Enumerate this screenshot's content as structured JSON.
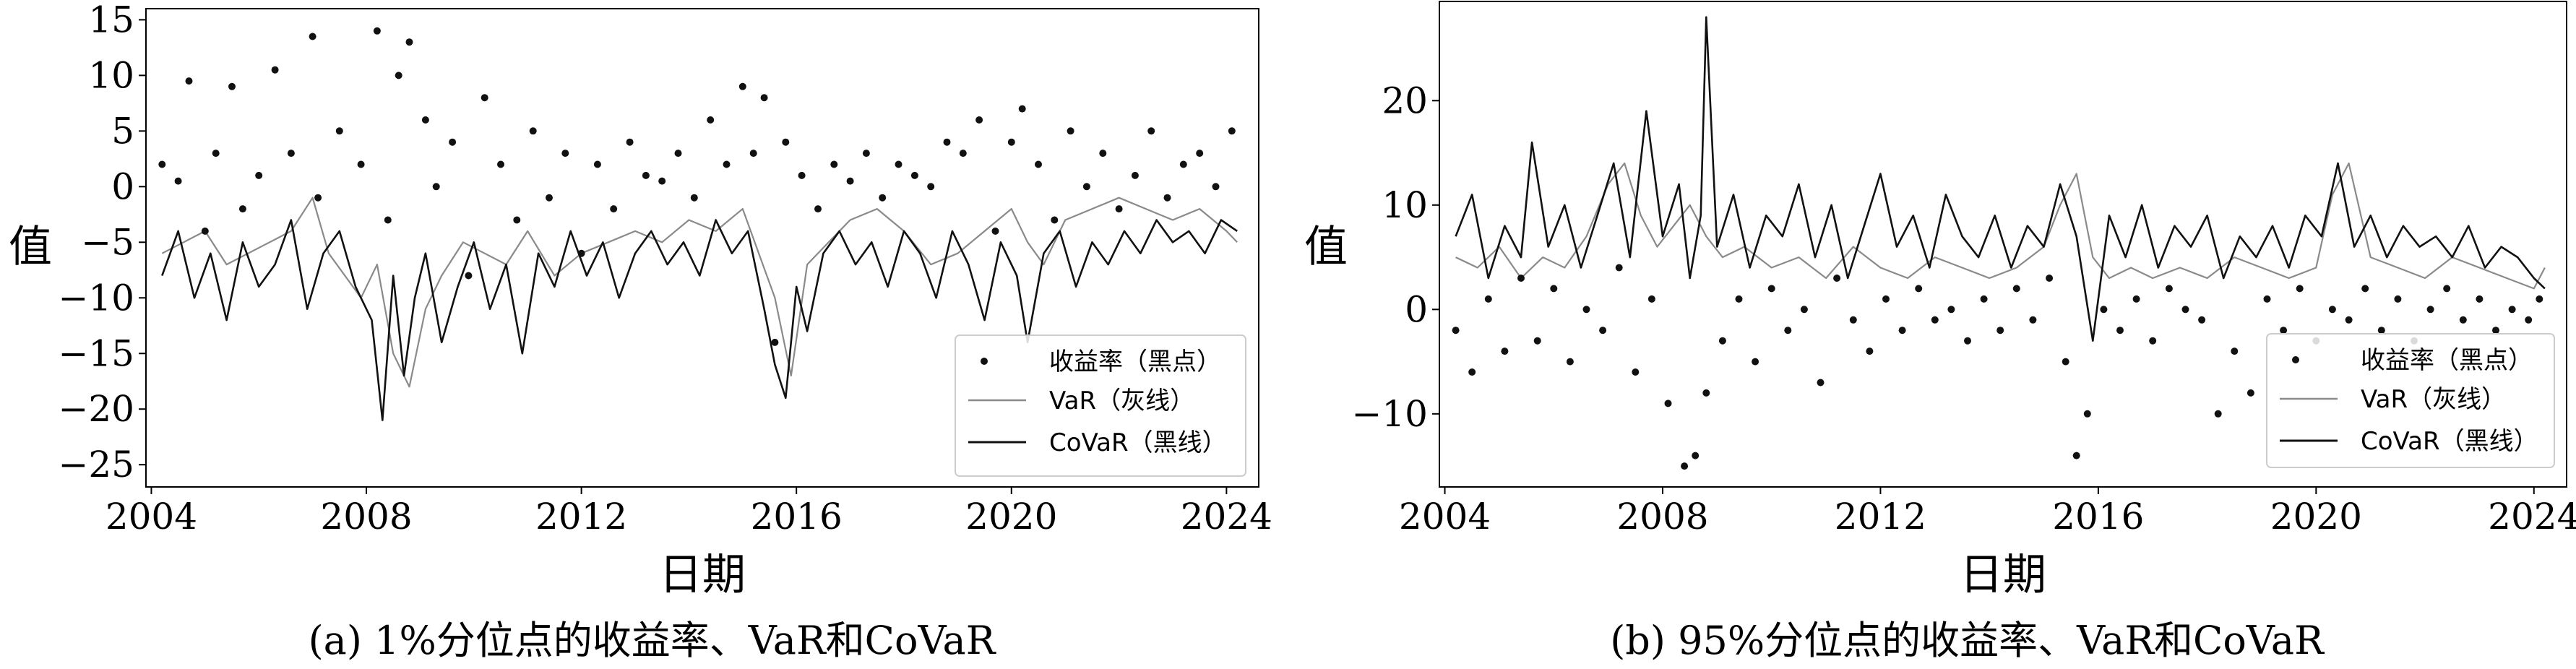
{
  "figure": {
    "xlabel": "日期",
    "ylabel": "值",
    "legend": {
      "returns": "收益率（黑点）",
      "var": "VaR（灰线）",
      "covar": "CoVaR（黑线）"
    }
  },
  "colors": {
    "returns": "#111111",
    "var": "#8a8a8a",
    "covar": "#111111",
    "frame": "#000000"
  },
  "chart_data": [
    {
      "type": "line",
      "caption": "(a) 1%分位点的收益率、VaR和CoVaR",
      "xlabel": "日期",
      "ylabel": "值",
      "xlim": [
        2003.9,
        2024.6
      ],
      "ylim": [
        -27,
        16
      ],
      "xticks": [
        2004,
        2008,
        2012,
        2016,
        2020,
        2024
      ],
      "xtick_labels": [
        "2004",
        "2008",
        "2012",
        "2016",
        "2020",
        "2024"
      ],
      "yticks": [
        15,
        10,
        5,
        0,
        -5,
        -10,
        -15,
        -20,
        -25
      ],
      "ytick_labels": [
        "15",
        "10",
        "5",
        "0",
        "−5",
        "−10",
        "−15",
        "−20",
        "−25"
      ],
      "grid": false,
      "legend_position": "lower-right",
      "series": [
        {
          "name": "收益率（黑点）",
          "kind": "scatter",
          "x": [
            2004.2,
            2004.5,
            2004.7,
            2005.0,
            2005.2,
            2005.5,
            2005.7,
            2006.0,
            2006.3,
            2006.6,
            2007.0,
            2007.1,
            2007.5,
            2007.9,
            2008.2,
            2008.4,
            2008.6,
            2008.8,
            2009.1,
            2009.3,
            2009.6,
            2009.9,
            2010.2,
            2010.5,
            2010.8,
            2011.1,
            2011.4,
            2011.7,
            2012.0,
            2012.3,
            2012.6,
            2012.9,
            2013.2,
            2013.5,
            2013.8,
            2014.1,
            2014.4,
            2014.7,
            2015.0,
            2015.2,
            2015.4,
            2015.6,
            2015.8,
            2016.1,
            2016.4,
            2016.7,
            2017.0,
            2017.3,
            2017.6,
            2017.9,
            2018.2,
            2018.5,
            2018.8,
            2019.1,
            2019.4,
            2019.7,
            2020.0,
            2020.2,
            2020.5,
            2020.8,
            2021.1,
            2021.4,
            2021.7,
            2022.0,
            2022.3,
            2022.6,
            2022.9,
            2023.2,
            2023.5,
            2023.8,
            2024.1
          ],
          "y": [
            2,
            0.5,
            9.5,
            -4,
            3,
            9,
            -2,
            1,
            10.5,
            3,
            13.5,
            -1,
            5,
            2,
            14,
            -3,
            10,
            13,
            6,
            0,
            4,
            -8,
            8,
            2,
            -3,
            5,
            -1,
            3,
            -6,
            2,
            -2,
            4,
            1,
            0.5,
            3,
            -1,
            6,
            2,
            9,
            3,
            8,
            -14,
            4,
            1,
            -2,
            2,
            0.5,
            3,
            -1,
            2,
            1,
            0,
            4,
            3,
            6,
            -4,
            4,
            7,
            2,
            -3,
            5,
            0,
            3,
            -2,
            1,
            5,
            -1,
            2,
            3,
            0,
            5
          ]
        },
        {
          "name": "VaR（灰线）",
          "kind": "line",
          "x": [
            2004.2,
            2004.6,
            2005.0,
            2005.4,
            2005.8,
            2006.2,
            2006.6,
            2007.0,
            2007.3,
            2007.6,
            2007.9,
            2008.2,
            2008.5,
            2008.8,
            2009.1,
            2009.4,
            2009.8,
            2010.2,
            2010.6,
            2011.0,
            2011.5,
            2012.0,
            2012.5,
            2013.0,
            2013.5,
            2014.0,
            2014.5,
            2015.0,
            2015.3,
            2015.6,
            2015.9,
            2016.2,
            2016.6,
            2017.0,
            2017.5,
            2018.0,
            2018.5,
            2019.0,
            2019.5,
            2020.0,
            2020.3,
            2020.6,
            2021.0,
            2021.5,
            2022.0,
            2022.5,
            2023.0,
            2023.5,
            2024.0,
            2024.2
          ],
          "y": [
            -6,
            -5,
            -4,
            -7,
            -6,
            -5,
            -4,
            -1,
            -6,
            -8,
            -10,
            -7,
            -15,
            -18,
            -11,
            -8,
            -5,
            -6,
            -7,
            -4,
            -8,
            -6,
            -5,
            -4,
            -5,
            -3,
            -4,
            -2,
            -6,
            -10,
            -17,
            -7,
            -5,
            -3,
            -2,
            -4,
            -7,
            -6,
            -4,
            -2,
            -5,
            -7,
            -3,
            -2,
            -1,
            -2,
            -3,
            -2,
            -4,
            -5
          ]
        },
        {
          "name": "CoVaR（黑线）",
          "kind": "line",
          "x": [
            2004.2,
            2004.5,
            2004.8,
            2005.1,
            2005.4,
            2005.7,
            2006.0,
            2006.3,
            2006.6,
            2006.9,
            2007.2,
            2007.5,
            2007.8,
            2008.1,
            2008.3,
            2008.5,
            2008.7,
            2008.9,
            2009.1,
            2009.4,
            2009.7,
            2010.0,
            2010.3,
            2010.6,
            2010.9,
            2011.2,
            2011.5,
            2011.8,
            2012.1,
            2012.4,
            2012.7,
            2013.0,
            2013.3,
            2013.6,
            2013.9,
            2014.2,
            2014.5,
            2014.8,
            2015.1,
            2015.4,
            2015.6,
            2015.8,
            2016.0,
            2016.2,
            2016.5,
            2016.8,
            2017.1,
            2017.4,
            2017.7,
            2018.0,
            2018.3,
            2018.6,
            2018.9,
            2019.2,
            2019.5,
            2019.8,
            2020.1,
            2020.3,
            2020.6,
            2020.9,
            2021.2,
            2021.5,
            2021.8,
            2022.1,
            2022.4,
            2022.7,
            2023.0,
            2023.3,
            2023.6,
            2023.9,
            2024.2
          ],
          "y": [
            -8,
            -4,
            -10,
            -6,
            -12,
            -5,
            -9,
            -7,
            -3,
            -11,
            -6,
            -4,
            -9,
            -12,
            -21,
            -8,
            -17,
            -10,
            -6,
            -14,
            -9,
            -5,
            -11,
            -7,
            -15,
            -6,
            -9,
            -4,
            -8,
            -5,
            -10,
            -6,
            -4,
            -7,
            -5,
            -8,
            -3,
            -6,
            -4,
            -11,
            -16,
            -19,
            -9,
            -13,
            -6,
            -4,
            -7,
            -5,
            -9,
            -4,
            -6,
            -10,
            -4,
            -7,
            -12,
            -5,
            -8,
            -14,
            -6,
            -4,
            -9,
            -5,
            -7,
            -4,
            -6,
            -3,
            -5,
            -4,
            -6,
            -3,
            -4
          ]
        }
      ]
    },
    {
      "type": "line",
      "caption": "(b) 95%分位点的收益率、VaR和CoVaR",
      "xlabel": "日期",
      "ylabel": "值",
      "xlim": [
        2003.9,
        2024.6
      ],
      "ylim": [
        -17,
        29.5
      ],
      "xticks": [
        2004,
        2008,
        2012,
        2016,
        2020,
        2024
      ],
      "xtick_labels": [
        "2004",
        "2008",
        "2012",
        "2016",
        "2020",
        "2024"
      ],
      "yticks": [
        20,
        10,
        0,
        -10
      ],
      "ytick_labels": [
        "20",
        "10",
        "0",
        "−10"
      ],
      "grid": false,
      "legend_position": "lower-right",
      "series": [
        {
          "name": "收益率（黑点）",
          "kind": "scatter",
          "x": [
            2004.2,
            2004.5,
            2004.8,
            2005.1,
            2005.4,
            2005.7,
            2006.0,
            2006.3,
            2006.6,
            2006.9,
            2007.2,
            2007.5,
            2007.8,
            2008.1,
            2008.4,
            2008.6,
            2008.8,
            2009.1,
            2009.4,
            2009.7,
            2010.0,
            2010.3,
            2010.6,
            2010.9,
            2011.2,
            2011.5,
            2011.8,
            2012.1,
            2012.4,
            2012.7,
            2013.0,
            2013.3,
            2013.6,
            2013.9,
            2014.2,
            2014.5,
            2014.8,
            2015.1,
            2015.4,
            2015.6,
            2015.8,
            2016.1,
            2016.4,
            2016.7,
            2017.0,
            2017.3,
            2017.6,
            2017.9,
            2018.2,
            2018.5,
            2018.8,
            2019.1,
            2019.4,
            2019.7,
            2020.0,
            2020.3,
            2020.6,
            2020.9,
            2021.2,
            2021.5,
            2021.8,
            2022.1,
            2022.4,
            2022.7,
            2023.0,
            2023.3,
            2023.6,
            2023.9,
            2024.1
          ],
          "y": [
            -2,
            -6,
            1,
            -4,
            3,
            -3,
            2,
            -5,
            0,
            -2,
            4,
            -6,
            1,
            -9,
            -15,
            -14,
            -8,
            -3,
            1,
            -5,
            2,
            -2,
            0,
            -7,
            3,
            -1,
            -4,
            1,
            -2,
            2,
            -1,
            0,
            -3,
            1,
            -2,
            2,
            -1,
            3,
            -5,
            -14,
            -10,
            0,
            -2,
            1,
            -3,
            2,
            0,
            -1,
            -10,
            -4,
            -8,
            1,
            -2,
            2,
            -3,
            0,
            -1,
            2,
            -2,
            1,
            -3,
            0,
            2,
            -1,
            1,
            -2,
            0,
            -1,
            1
          ]
        },
        {
          "name": "VaR（灰线）",
          "kind": "line",
          "x": [
            2004.2,
            2004.6,
            2005.0,
            2005.4,
            2005.8,
            2006.2,
            2006.6,
            2007.0,
            2007.3,
            2007.6,
            2007.9,
            2008.2,
            2008.5,
            2008.8,
            2009.1,
            2009.5,
            2010.0,
            2010.5,
            2011.0,
            2011.5,
            2012.0,
            2012.5,
            2013.0,
            2013.5,
            2014.0,
            2014.5,
            2015.0,
            2015.3,
            2015.6,
            2015.9,
            2016.2,
            2016.6,
            2017.0,
            2017.5,
            2018.0,
            2018.5,
            2019.0,
            2019.5,
            2020.0,
            2020.3,
            2020.6,
            2021.0,
            2021.5,
            2022.0,
            2022.5,
            2023.0,
            2023.5,
            2024.0,
            2024.2
          ],
          "y": [
            5,
            4,
            6,
            3,
            5,
            4,
            7,
            12,
            14,
            9,
            6,
            8,
            10,
            7,
            5,
            6,
            4,
            5,
            3,
            6,
            4,
            3,
            5,
            4,
            3,
            4,
            6,
            10,
            13,
            5,
            3,
            4,
            3,
            4,
            3,
            5,
            4,
            3,
            4,
            11,
            14,
            5,
            4,
            3,
            5,
            4,
            3,
            2,
            4
          ]
        },
        {
          "name": "CoVaR（黑线）",
          "kind": "line",
          "x": [
            2004.2,
            2004.5,
            2004.8,
            2005.1,
            2005.4,
            2005.6,
            2005.9,
            2006.2,
            2006.5,
            2006.8,
            2007.1,
            2007.4,
            2007.7,
            2008.0,
            2008.3,
            2008.5,
            2008.7,
            2008.8,
            2009.0,
            2009.3,
            2009.6,
            2009.9,
            2010.2,
            2010.5,
            2010.8,
            2011.1,
            2011.4,
            2011.7,
            2012.0,
            2012.3,
            2012.6,
            2012.9,
            2013.2,
            2013.5,
            2013.8,
            2014.1,
            2014.4,
            2014.7,
            2015.0,
            2015.3,
            2015.6,
            2015.9,
            2016.2,
            2016.5,
            2016.8,
            2017.1,
            2017.4,
            2017.7,
            2018.0,
            2018.3,
            2018.6,
            2018.9,
            2019.2,
            2019.5,
            2019.8,
            2020.1,
            2020.4,
            2020.7,
            2021.0,
            2021.3,
            2021.6,
            2021.9,
            2022.2,
            2022.5,
            2022.8,
            2023.1,
            2023.4,
            2023.7,
            2024.0,
            2024.2
          ],
          "y": [
            7,
            11,
            3,
            8,
            5,
            16,
            6,
            10,
            4,
            9,
            14,
            5,
            19,
            7,
            12,
            3,
            9,
            28,
            6,
            11,
            4,
            9,
            7,
            12,
            5,
            10,
            3,
            8,
            13,
            6,
            9,
            4,
            11,
            7,
            5,
            9,
            4,
            8,
            6,
            12,
            7,
            -3,
            9,
            5,
            10,
            4,
            8,
            6,
            9,
            3,
            7,
            5,
            8,
            4,
            9,
            7,
            14,
            6,
            9,
            5,
            8,
            6,
            7,
            5,
            8,
            4,
            6,
            5,
            3,
            2
          ]
        }
      ]
    }
  ]
}
